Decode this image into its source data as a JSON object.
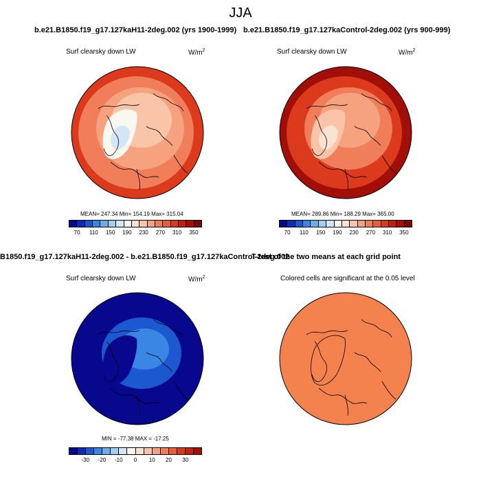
{
  "page": {
    "title": "JJA"
  },
  "panels": [
    {
      "title": "b.e21.B1850.f19_g17.127kaH11-2deg.002 (yrs 1900-1999)",
      "var_label": "Surf clearsky down LW",
      "units": "W/m",
      "units_sup": "2",
      "stats": "MEAN= 247.34  Min= 154.19  Max= 315.04"
    },
    {
      "title": "b.e21.B1850.f19_g17.127kaControl-2deg.002 (yrs 900-999)",
      "var_label": "Surf clearsky down LW",
      "units": "W/m",
      "units_sup": "2",
      "stats": "MEAN= 289.86  Min= 188.29  Max= 365.00"
    },
    {
      "title": "B1850.f19_g17.127kaH11-2deg.002 - b.e21.B1850.f19_g17.127kaControl-2deg.002",
      "var_label": "Surf clearsky down LW",
      "units": "W/m",
      "units_sup": "2",
      "stats": "MIN = -77.38 MAX = -17.25"
    },
    {
      "title": "T-test of the two means at each grid point",
      "var_label": "Colored cells are significant at the 0.05 level"
    }
  ],
  "chart_data": [
    {
      "type": "heatmap",
      "projection": "north-polar-stereographic",
      "title": "b.e21.B1850.f19_g17.127kaH11-2deg.002 (yrs 1900-1999)",
      "variable": "Surf clearsky down LW",
      "units": "W/m2",
      "mean": 247.34,
      "min": 154.19,
      "max": 315.04,
      "colorbar_ticks": [
        70,
        110,
        150,
        190,
        230,
        270,
        310,
        350
      ],
      "colorbar_range": [
        50,
        370
      ],
      "colorbar_colors": [
        "#08088e",
        "#0c2cb4",
        "#1c58d0",
        "#3a86e4",
        "#6aaee8",
        "#a2cdf0",
        "#d3e6f6",
        "#f8f8f0",
        "#fbe2d2",
        "#f9c4a8",
        "#f6a27f",
        "#f17e5a",
        "#ea5c38",
        "#dc3a1c",
        "#c41e0e",
        "#a20e08",
        "#7c0404"
      ],
      "field": {
        "center_value": 232,
        "zones": [
          {
            "value": 200,
            "note": "Greenland"
          },
          {
            "value": 175,
            "note": "Greenland interior"
          },
          {
            "value": 250,
            "note": "continental ring"
          },
          {
            "value": 272,
            "note": "outer belt"
          },
          {
            "value": 295,
            "note": "outer edge"
          }
        ]
      }
    },
    {
      "type": "heatmap",
      "projection": "north-polar-stereographic",
      "title": "b.e21.B1850.f19_g17.127kaControl-2deg.002 (yrs 900-999)",
      "variable": "Surf clearsky down LW",
      "units": "W/m2",
      "mean": 289.86,
      "min": 188.29,
      "max": 365.0,
      "colorbar_ticks": [
        70,
        110,
        150,
        190,
        230,
        270,
        310,
        350
      ],
      "colorbar_range": [
        50,
        370
      ],
      "colorbar_colors": [
        "#08088e",
        "#0c2cb4",
        "#1c58d0",
        "#3a86e4",
        "#6aaee8",
        "#a2cdf0",
        "#d3e6f6",
        "#f8f8f0",
        "#fbe2d2",
        "#f9c4a8",
        "#f6a27f",
        "#f17e5a",
        "#ea5c38",
        "#dc3a1c",
        "#c41e0e",
        "#a20e08",
        "#7c0404"
      ],
      "field": {
        "center_value": 245,
        "zones": [
          {
            "value": 235,
            "note": "Greenland"
          },
          {
            "value": 215,
            "note": "Greenland interior"
          },
          {
            "value": 275,
            "note": "continental ring"
          },
          {
            "value": 312,
            "note": "outer belt"
          },
          {
            "value": 345,
            "note": "outer edge"
          }
        ]
      }
    },
    {
      "type": "heatmap",
      "projection": "north-polar-stereographic",
      "title": "B1850.f19_g17.127kaH11-2deg.002 - b.e21.B1850.f19_g17.127kaControl-2deg.002",
      "variable": "Surf clearsky down LW",
      "units": "W/m2",
      "min": -77.38,
      "max": -17.25,
      "colorbar_ticks": [
        -30,
        -20,
        -10,
        0,
        10,
        20,
        30
      ],
      "colorbar_range": [
        -40,
        40
      ],
      "colorbar_colors": [
        "#08088e",
        "#0c2cb4",
        "#1c58d0",
        "#3a86e4",
        "#6aaee8",
        "#a2cdf0",
        "#d3e6f6",
        "#f8f8f0",
        "#fbe2d2",
        "#f9c4a8",
        "#f6a27f",
        "#f17e5a",
        "#ea5c38",
        "#dc3a1c",
        "#c41e0e",
        "#a20e08"
      ],
      "field": {
        "center_value": -22,
        "zones": [
          {
            "value": -40,
            "note": "Greenland"
          },
          {
            "value": -28,
            "note": "central Arctic"
          },
          {
            "value": -40,
            "note": "outer"
          }
        ]
      }
    },
    {
      "type": "heatmap",
      "projection": "north-polar-stereographic",
      "title": "T-test of the two means at each grid point",
      "variable": "Colored cells are significant at the 0.05 level",
      "significance_level": 0.05,
      "significant_everywhere": true,
      "fill_color": "#f4824f"
    }
  ]
}
